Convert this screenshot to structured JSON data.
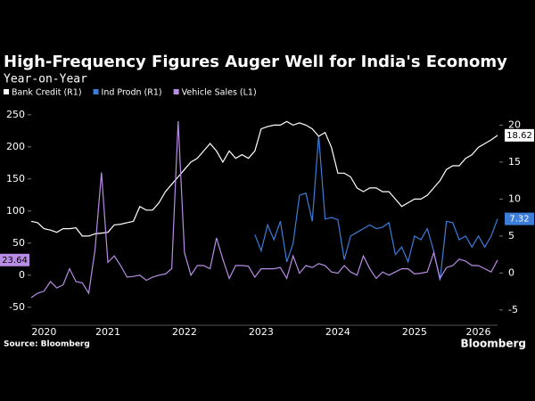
{
  "chart_data": {
    "type": "line",
    "title": "High-Frequency Figures Auger Well for India's Economy",
    "subtitle": "Year-on-Year",
    "source": "Source: Bloomberg",
    "logo": "Bloomberg",
    "categories": [
      null,
      null,
      "2020",
      null,
      null,
      null,
      null,
      null,
      null,
      null,
      null,
      null,
      "2021",
      null,
      null,
      null,
      null,
      null,
      null,
      null,
      null,
      null,
      null,
      null,
      "2022",
      null,
      null,
      null,
      null,
      null,
      null,
      null,
      null,
      null,
      null,
      null,
      "2023",
      null,
      null,
      null,
      null,
      null,
      null,
      null,
      null,
      null,
      null,
      null,
      "2024",
      null,
      null,
      null,
      null,
      null,
      null,
      null,
      null,
      null,
      null,
      null,
      "2025",
      null,
      null,
      null,
      null,
      null,
      null,
      null,
      null,
      null,
      "2026",
      null,
      null,
      null
    ],
    "ylim": [
      -60,
      265
    ],
    "yticks": [
      250,
      200,
      150,
      100,
      50,
      0,
      -50
    ],
    "y2lim": [
      -5.5,
      22.7
    ],
    "y2ticks": [
      20,
      15,
      10,
      5,
      0,
      -5
    ],
    "series": [
      {
        "name": "Bank Credit (R1)",
        "color": "#ffffff",
        "axis": "y2",
        "values": [
          7.0,
          6.8,
          6.0,
          5.8,
          5.5,
          6.0,
          6.0,
          6.1,
          5.0,
          5.0,
          5.3,
          5.4,
          5.5,
          6.5,
          6.6,
          6.8,
          7.0,
          9.0,
          8.5,
          8.5,
          9.5,
          11,
          12,
          13,
          14,
          15,
          15.5,
          16.5,
          17.5,
          16.5,
          15,
          16.5,
          15.5,
          16,
          15.5,
          16.5,
          19.5,
          19.8,
          20,
          20,
          20.5,
          20,
          20.3,
          20,
          19.5,
          18.5,
          19,
          17,
          13.5,
          13.5,
          13,
          11.5,
          11,
          11.5,
          11.5,
          11,
          11,
          10,
          9,
          9.5,
          10,
          10,
          10.5,
          11.5,
          12.5,
          14,
          14.5,
          14.5,
          15.5,
          16,
          17,
          17.5,
          18,
          18.62
        ]
      },
      {
        "name": "Ind Prodn (R1)",
        "color": "#3b7dd8",
        "axis": "y2",
        "values": [
          null,
          null,
          null,
          null,
          null,
          null,
          null,
          null,
          null,
          null,
          null,
          null,
          null,
          null,
          null,
          null,
          null,
          null,
          null,
          null,
          null,
          null,
          null,
          null,
          null,
          null,
          null,
          null,
          null,
          null,
          null,
          null,
          null,
          null,
          null,
          5.2,
          3.0,
          6.5,
          4.5,
          7.0,
          1.5,
          4.0,
          10.5,
          10.8,
          7.0,
          18.6,
          7.3,
          7.5,
          7.2,
          1.8,
          5.0,
          5.5,
          6.0,
          6.5,
          6.0,
          6.2,
          6.8,
          2.5,
          3.5,
          1.5,
          5.0,
          4.5,
          6.0,
          3.0,
          -1.0,
          7.0,
          6.8,
          4.5,
          5.0,
          3.5,
          5.0,
          3.5,
          5.0,
          7.32
        ]
      },
      {
        "name": "Vehicle Sales (L1)",
        "color": "#b98ce6",
        "values": [
          -35,
          -28,
          -25,
          -10,
          -20,
          -15,
          10,
          -10,
          -12,
          -28,
          40,
          160,
          20,
          30,
          15,
          -3,
          -2,
          0,
          -8,
          -3,
          0,
          2,
          10,
          240,
          35,
          0,
          15,
          15,
          10,
          58,
          25,
          -5,
          15,
          15,
          14,
          -3,
          10,
          10,
          10,
          12,
          -5,
          30,
          3,
          15,
          12,
          18,
          15,
          5,
          3,
          15,
          5,
          0,
          30,
          10,
          -5,
          5,
          0,
          5,
          10,
          10,
          2,
          3,
          5,
          35,
          -5,
          12,
          15,
          25,
          22,
          15,
          15,
          10,
          5,
          23.64
        ]
      }
    ]
  }
}
